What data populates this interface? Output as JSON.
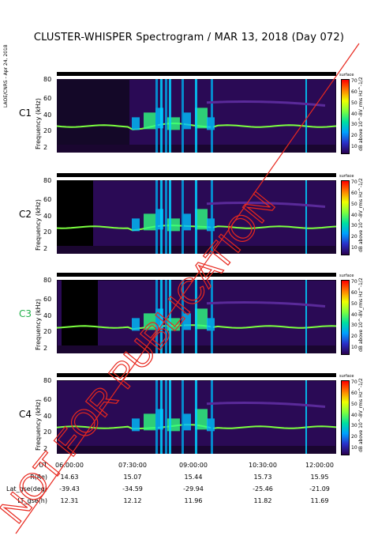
{
  "header": {
    "title": "CLUSTER-WHISPER Spectrogram / MAR 13, 2018 (Day 072)",
    "side_note": "LAOE/CNRS - Apr 24, 2018"
  },
  "panels": [
    {
      "label": "C1",
      "label_color": "#000000",
      "ylabel": "Frequency (kHz)",
      "yticks": [
        "80",
        "60",
        "40",
        "20",
        "2"
      ],
      "cbar_label": "dB above 10^-8V_rms Hz^-1/2",
      "cbar_ticks": [
        "70",
        "60",
        "50",
        "40",
        "30",
        "20",
        "10"
      ],
      "cbar_top": "surface"
    },
    {
      "label": "C2",
      "label_color": "#000000",
      "ylabel": "Frequency (kHz)",
      "yticks": [
        "80",
        "60",
        "40",
        "20",
        "2"
      ],
      "cbar_label": "dB above 10^-8V_rms Hz^-1/2",
      "cbar_ticks": [
        "70",
        "60",
        "50",
        "40",
        "30",
        "20",
        "10"
      ],
      "cbar_top": "surface"
    },
    {
      "label": "C3",
      "label_color": "#22b04a",
      "ylabel": "Frequency (kHz)",
      "yticks": [
        "80",
        "60",
        "40",
        "20",
        "2"
      ],
      "cbar_label": "dB above 10^-8V_rms Hz^-1/2",
      "cbar_ticks": [
        "70",
        "60",
        "50",
        "40",
        "30",
        "20",
        "10"
      ],
      "cbar_top": "surface"
    },
    {
      "label": "C4",
      "label_color": "#000000",
      "ylabel": "Frequency (kHz)",
      "yticks": [
        "80",
        "60",
        "40",
        "20",
        "2"
      ],
      "cbar_label": "dB above 10^-8V_rms Hz^-1/2",
      "cbar_ticks": [
        "70",
        "60",
        "50",
        "40",
        "30",
        "20",
        "10"
      ],
      "cbar_top": "surface"
    }
  ],
  "table": {
    "rows": [
      {
        "name": "UT",
        "values": [
          "06:00:00",
          "07:30:00",
          "09:00:00",
          "10:30:00",
          "12:00:00"
        ]
      },
      {
        "name": "R(Re)",
        "values": [
          "14.63",
          "15.07",
          "15.44",
          "15.73",
          "15.95"
        ]
      },
      {
        "name": "Lat_gse(deg)",
        "values": [
          "-39.43",
          "-34.59",
          "-29.94",
          "-25.46",
          "-21.09"
        ]
      },
      {
        "name": "LT_gse(h)",
        "values": [
          "12.31",
          "12.12",
          "11.96",
          "11.82",
          "11.69"
        ]
      }
    ]
  },
  "stamp": {
    "text": "NOT FOR PUBLICATION",
    "color": "#e8281e"
  },
  "colors": {
    "background_spectrum": "#2a0a55",
    "colorbar": [
      "#2a004f",
      "#2a30c8",
      "#00a0ff",
      "#00e0a0",
      "#7cff40",
      "#f0ff00",
      "#ff8000",
      "#ff0000"
    ]
  }
}
